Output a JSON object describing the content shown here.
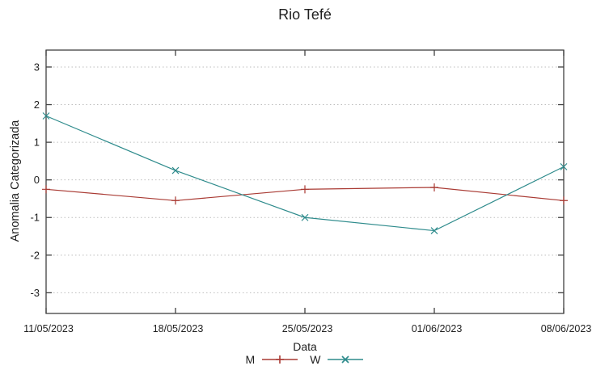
{
  "chart_data": {
    "type": "line",
    "title": "Rio Tefé",
    "xlabel": "Data",
    "ylabel": "Anomalia Categorizada",
    "categories": [
      "11/05/2023",
      "18/05/2023",
      "25/05/2023",
      "01/06/2023",
      "08/06/2023"
    ],
    "series": [
      {
        "name": "M",
        "marker": "plus",
        "color": "#a93a33",
        "values": [
          -0.25,
          -0.55,
          -0.25,
          -0.2,
          -0.55
        ]
      },
      {
        "name": "W",
        "marker": "cross",
        "color": "#2e8b8c",
        "values": [
          1.7,
          0.25,
          -1.0,
          -1.35,
          0.35
        ]
      }
    ],
    "yticks": [
      -3,
      -2,
      -1,
      0,
      1,
      2,
      3
    ],
    "ylim": [
      -3.55,
      3.45
    ],
    "grid": "horizontal-dotted",
    "legend_position": "bottom-center"
  },
  "style": {
    "frame_color": "#404040",
    "grid_color": "#bdbdbd",
    "tick_label_color": "#1f1f1f"
  }
}
